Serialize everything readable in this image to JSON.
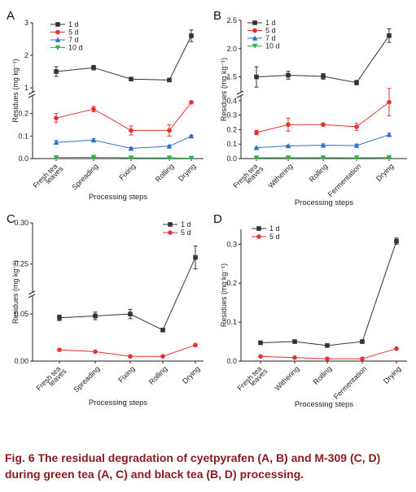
{
  "figure": {
    "caption": "Fig. 6  The residual degradation of cyetpyrafen (A, B) and M-309 (C, D) during green tea (A, C) and black tea (B, D) processing."
  },
  "chart_data": [
    {
      "panel": "A",
      "type": "line",
      "categories": [
        "Fresh tea leaves",
        "Spreading",
        "Fixing",
        "Rolling",
        "Drying"
      ],
      "xlabel": "Processing steps",
      "ylabel": "Residues (mg kg⁻¹)",
      "broken_axis": true,
      "ylim_lower": [
        0,
        0.3
      ],
      "ylim_upper": [
        1,
        3
      ],
      "yticks_lower": [
        "0.0",
        "0.1",
        "0.2"
      ],
      "yticks_upper": [
        "1",
        "2",
        "3"
      ],
      "legend": "top-left",
      "series": [
        {
          "name": "1 d",
          "color": "#333333",
          "marker": "square",
          "values": [
            1.5,
            1.62,
            1.27,
            1.24,
            2.6
          ],
          "errors": [
            0.15,
            0.07,
            0.04,
            0.04,
            0.18
          ]
        },
        {
          "name": "5 d",
          "color": "#e8312f",
          "marker": "circle",
          "values": [
            0.18,
            0.22,
            0.125,
            0.125,
            0.25
          ],
          "errors": [
            0.02,
            0.012,
            0.02,
            0.025,
            0.005
          ]
        },
        {
          "name": "7 d",
          "color": "#2a6fc9",
          "marker": "triangle-up",
          "values": [
            0.072,
            0.082,
            0.045,
            0.055,
            0.1
          ],
          "errors": [
            0.008,
            0.006,
            0.005,
            0.005,
            0.004
          ]
        },
        {
          "name": "10 d",
          "color": "#2bb04a",
          "marker": "triangle-down",
          "values": [
            0.005,
            0.006,
            0.003,
            0.003,
            0.002
          ],
          "errors": [
            0.003,
            0.003,
            0.002,
            0.002,
            0.001
          ]
        }
      ]
    },
    {
      "panel": "B",
      "type": "line",
      "categories": [
        "Fresh tea leaves",
        "Withering",
        "Rolling",
        "Fermentation",
        "Drying"
      ],
      "xlabel": "Processing steps",
      "ylabel": "Residues (mg kg⁻¹)",
      "broken_axis": true,
      "ylim_lower": [
        0,
        0.45
      ],
      "ylim_upper": [
        1.25,
        2.5
      ],
      "yticks_lower": [
        "0.0",
        "0.1",
        "0.2",
        "0.3",
        "0.4"
      ],
      "yticks_upper": [
        "1.5",
        "2.0",
        "2.5"
      ],
      "legend": "top-left",
      "series": [
        {
          "name": "1 d",
          "color": "#333333",
          "marker": "square",
          "values": [
            1.5,
            1.53,
            1.51,
            1.4,
            2.23
          ],
          "errors": [
            0.18,
            0.07,
            0.05,
            0.04,
            0.12
          ]
        },
        {
          "name": "5 d",
          "color": "#e8312f",
          "marker": "circle",
          "values": [
            0.18,
            0.235,
            0.235,
            0.22,
            0.39
          ],
          "errors": [
            0.015,
            0.045,
            0.01,
            0.025,
            0.095
          ]
        },
        {
          "name": "7 d",
          "color": "#2a6fc9",
          "marker": "triangle-up",
          "values": [
            0.075,
            0.088,
            0.092,
            0.09,
            0.165
          ],
          "errors": [
            0.004,
            0.004,
            0.01,
            0.01,
            0.01
          ]
        },
        {
          "name": "10 d",
          "color": "#2bb04a",
          "marker": "triangle-down",
          "values": [
            0.005,
            0.006,
            0.006,
            0.005,
            0.008
          ],
          "errors": [
            0.002,
            0.002,
            0.002,
            0.002,
            0.002
          ]
        }
      ]
    },
    {
      "panel": "C",
      "type": "line",
      "categories": [
        "Fresh tea leaves",
        "Spreading",
        "Fixing",
        "Rolling",
        "Drying"
      ],
      "xlabel": "Processing steps",
      "ylabel": "Residues (mg kg⁻¹)",
      "broken_axis": true,
      "ylim_lower": [
        0,
        0.07
      ],
      "ylim_upper": [
        0.22,
        0.3
      ],
      "yticks_lower": [
        "0.00",
        "0.05"
      ],
      "yticks_upper": [
        "0.25",
        "0.30"
      ],
      "legend": "top-right",
      "series": [
        {
          "name": "1 d",
          "color": "#333333",
          "marker": "square",
          "values": [
            0.046,
            0.048,
            0.05,
            0.033,
            0.258
          ],
          "errors": [
            0.003,
            0.004,
            0.005,
            0.002,
            0.014
          ]
        },
        {
          "name": "5 d",
          "color": "#e8312f",
          "marker": "circle",
          "values": [
            0.012,
            0.01,
            0.005,
            0.005,
            0.017
          ],
          "errors": [
            0.0008,
            0.0008,
            0.0005,
            0.0005,
            0.0015
          ]
        }
      ]
    },
    {
      "panel": "D",
      "type": "line",
      "categories": [
        "Fresh tea leaves",
        "Withering",
        "Rolling",
        "Fermentation",
        "Drying"
      ],
      "xlabel": "Processing steps",
      "ylabel": "Residues (mg kg⁻¹)",
      "broken_axis": false,
      "ylim": [
        0,
        0.33
      ],
      "yticks": [
        "0.0",
        "0.1",
        "0.2",
        "0.3"
      ],
      "legend": "top-left",
      "series": [
        {
          "name": "1 d",
          "color": "#333333",
          "marker": "square",
          "values": [
            0.047,
            0.05,
            0.04,
            0.05,
            0.308
          ],
          "errors": [
            0.003,
            0.002,
            0.002,
            0.002,
            0.008
          ]
        },
        {
          "name": "5 d",
          "color": "#e8312f",
          "marker": "circle",
          "values": [
            0.012,
            0.009,
            0.006,
            0.006,
            0.032
          ],
          "errors": [
            0.001,
            0.001,
            0.001,
            0.001,
            0.002
          ]
        }
      ]
    }
  ]
}
